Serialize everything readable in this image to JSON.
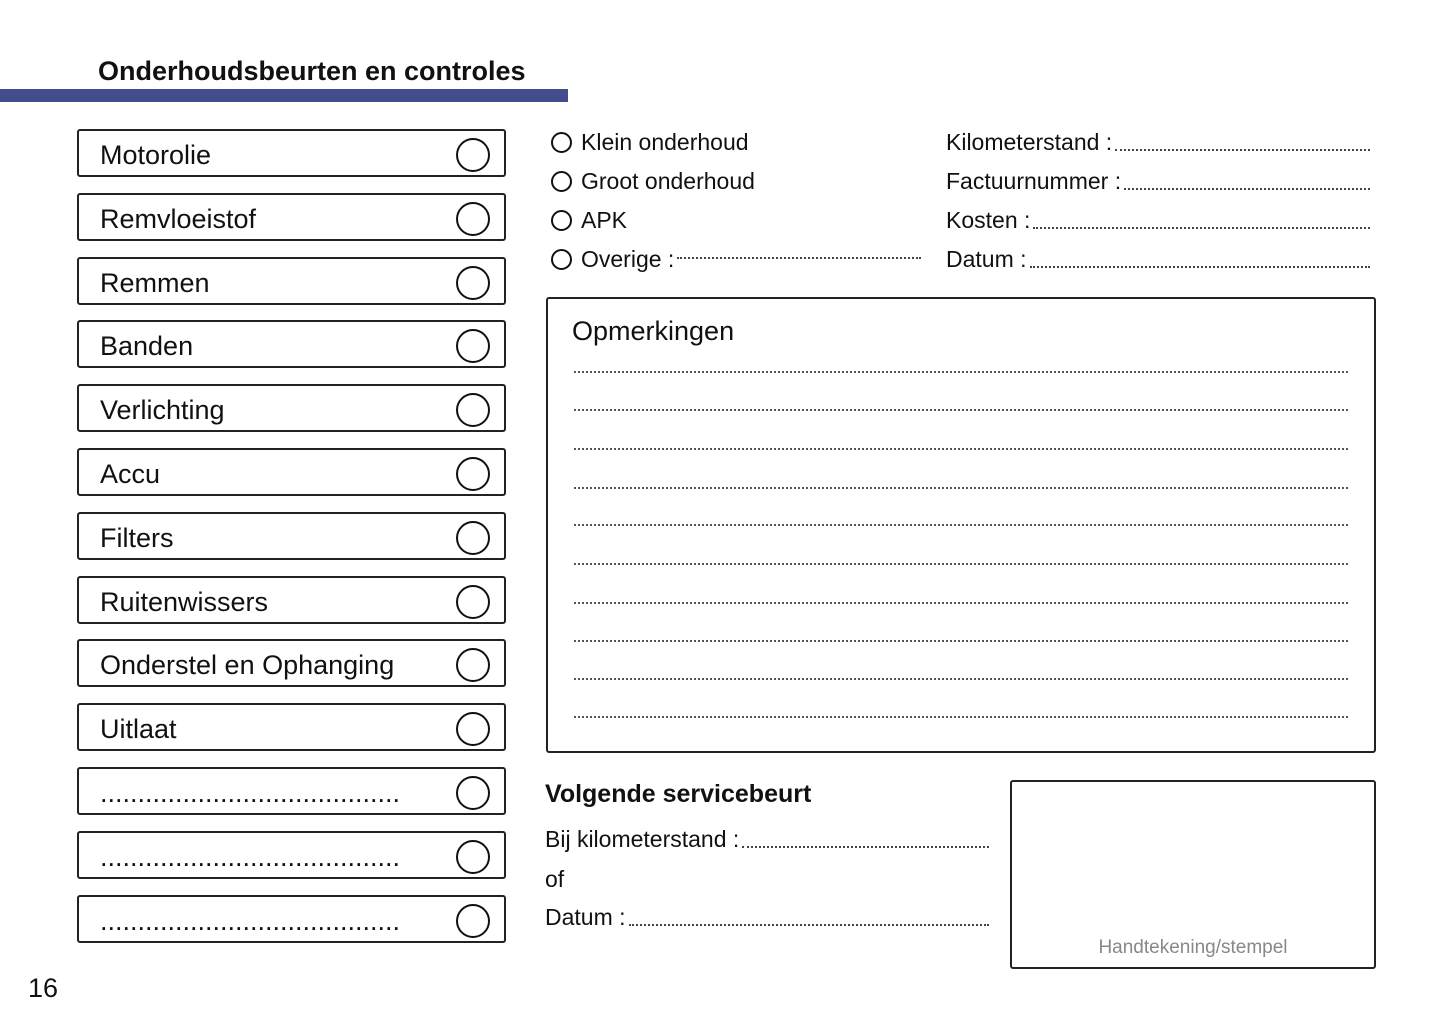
{
  "header": {
    "title": "Onderhoudsbeurten en controles",
    "accent_color": "#434c8c"
  },
  "checklist": [
    {
      "label": "Motorolie"
    },
    {
      "label": "Remvloeistof"
    },
    {
      "label": "Remmen"
    },
    {
      "label": "Banden"
    },
    {
      "label": "Verlichting"
    },
    {
      "label": "Accu"
    },
    {
      "label": "Filters"
    },
    {
      "label": "Ruitenwissers"
    },
    {
      "label": "Onderstel en Ophanging"
    },
    {
      "label": "Uitlaat"
    },
    {
      "label": "........................................"
    },
    {
      "label": "........................................"
    },
    {
      "label": "........................................"
    }
  ],
  "service_types": [
    {
      "label": "Klein onderhoud"
    },
    {
      "label": "Groot onderhoud"
    },
    {
      "label": "APK"
    },
    {
      "label": "Overige :"
    }
  ],
  "fields": [
    {
      "label": "Kilometerstand :"
    },
    {
      "label": "Factuurnummer :"
    },
    {
      "label": "Kosten :"
    },
    {
      "label": "Datum :"
    }
  ],
  "remarks": {
    "title": "Opmerkingen"
  },
  "next_service": {
    "title": "Volgende servicebeurt",
    "km_label": "Bij kilometerstand :",
    "or_label": "of",
    "date_label": "Datum :"
  },
  "signature": {
    "label": "Handtekening/stempel"
  },
  "page_number": "16"
}
